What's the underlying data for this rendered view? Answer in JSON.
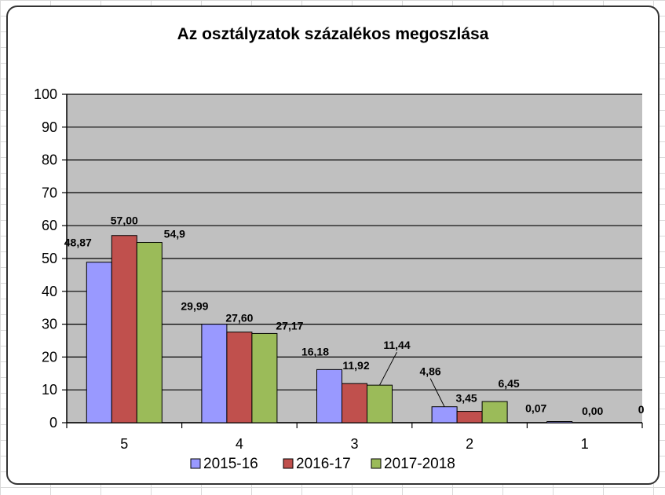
{
  "chart_data": {
    "type": "bar",
    "title": "Az osztályzatok százalékos megoszlása",
    "xlabel": "",
    "ylabel": "",
    "categories": [
      "5",
      "4",
      "3",
      "2",
      "1"
    ],
    "ylim": [
      0,
      100
    ],
    "yticks": [
      "0",
      "10",
      "20",
      "30",
      "40",
      "50",
      "60",
      "70",
      "80",
      "90",
      "100"
    ],
    "grid": true,
    "legend_position": "bottom",
    "series": [
      {
        "name": "2015-16",
        "color": "#9999ff",
        "values": [
          48.87,
          29.99,
          16.18,
          4.86,
          0.07
        ],
        "labels": [
          "48,87",
          "29,99",
          "16,18",
          "4,86",
          "0,07"
        ]
      },
      {
        "name": "2016-17",
        "color": "#c0504d",
        "values": [
          57.0,
          27.6,
          11.92,
          3.45,
          0.0
        ],
        "labels": [
          "57,00",
          "27,60",
          "11,92",
          "3,45",
          "0,00"
        ]
      },
      {
        "name": "2017-2018",
        "color": "#9bbb59",
        "values": [
          54.9,
          27.17,
          11.44,
          6.45,
          0
        ],
        "labels": [
          "54,9",
          "27,17",
          "11,44",
          "6,45",
          "0"
        ]
      }
    ]
  }
}
